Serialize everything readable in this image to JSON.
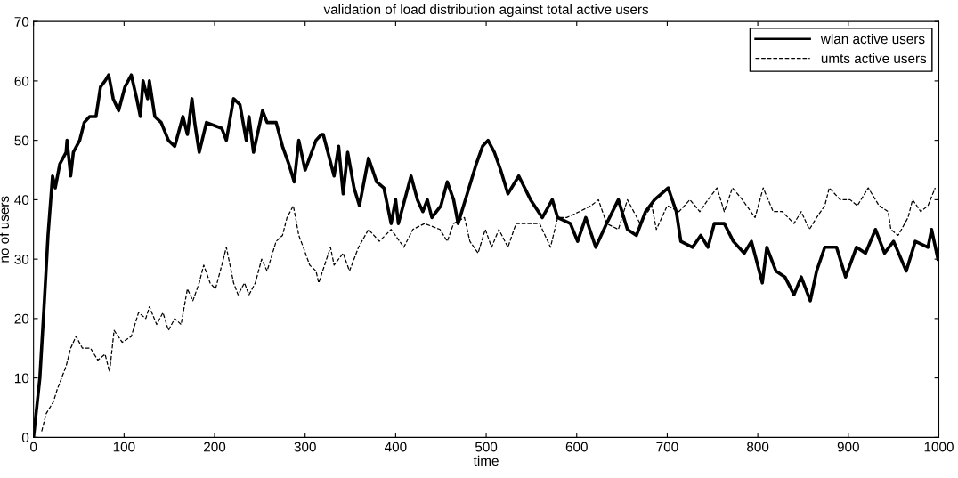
{
  "chart_data": {
    "type": "line",
    "title": "validation of load distribution against total active users",
    "xlabel": "time",
    "ylabel": "no of users",
    "xlim": [
      0,
      1000
    ],
    "xticks": [
      0,
      100,
      200,
      300,
      400,
      500,
      600,
      700,
      800,
      900,
      1000
    ],
    "ylim": [
      0,
      70
    ],
    "yticks": [
      0,
      10,
      20,
      30,
      40,
      50,
      60,
      70
    ],
    "grid": false,
    "legend": "top right",
    "series": [
      {
        "name": "wlan active users",
        "color": "#000000",
        "line_style": "solid",
        "marker": "none",
        "x": [
          0,
          7,
          12,
          16,
          21,
          24,
          29,
          36,
          37,
          41,
          44,
          51,
          56,
          62,
          69,
          74,
          79,
          83,
          88,
          94,
          101,
          108,
          114,
          118,
          121,
          126,
          128,
          134,
          141,
          149,
          156,
          165,
          170,
          175,
          178,
          183,
          191,
          208,
          213,
          221,
          228,
          235,
          238,
          243,
          253,
          258,
          268,
          275,
          282,
          288,
          293,
          300,
          312,
          318,
          320,
          332,
          337,
          342,
          347,
          354,
          360,
          370,
          379,
          387,
          395,
          400,
          403,
          417,
          424,
          430,
          435,
          440,
          450,
          457,
          464,
          469,
          479,
          489,
          496,
          502,
          509,
          516,
          524,
          536,
          549,
          562,
          573,
          579,
          593,
          601,
          610,
          621,
          633,
          646,
          656,
          666,
          676,
          686,
          701,
          710,
          715,
          728,
          737,
          745,
          752,
          763,
          773,
          785,
          793,
          805,
          810,
          820,
          830,
          840,
          848,
          858,
          865,
          874,
          887,
          897,
          909,
          919,
          930,
          940,
          950,
          964,
          974,
          988,
          992,
          999
        ],
        "values": [
          0,
          10,
          23,
          34,
          44,
          42,
          46,
          48,
          50,
          44,
          48,
          50,
          53,
          54,
          54,
          59,
          60,
          61,
          57,
          55,
          59,
          61,
          57,
          54,
          60,
          57,
          60,
          54,
          53,
          50,
          49,
          54,
          51,
          57,
          53,
          48,
          53,
          52,
          50,
          57,
          56,
          50,
          54,
          48,
          55,
          53,
          53,
          49,
          46,
          43,
          50,
          45,
          50,
          51,
          51,
          44,
          49,
          41,
          48,
          42,
          39,
          47,
          43,
          42,
          36,
          40,
          36,
          44,
          40,
          38,
          40,
          37,
          39,
          43,
          40,
          36,
          41,
          46,
          49,
          50,
          48,
          45,
          41,
          44,
          40,
          37,
          40,
          37,
          36,
          33,
          37,
          32,
          36,
          40,
          35,
          34,
          38,
          40,
          42,
          38,
          33,
          32,
          34,
          32,
          36,
          36,
          33,
          31,
          33,
          26,
          32,
          28,
          27,
          24,
          27,
          23,
          28,
          32,
          32,
          27,
          32,
          31,
          35,
          31,
          33,
          28,
          33,
          32,
          35,
          30
        ]
      },
      {
        "name": "umts active users",
        "color": "#000000",
        "line_style": "dashed",
        "marker": "none",
        "x": [
          9,
          14,
          22,
          26,
          31,
          36,
          41,
          47,
          54,
          63,
          71,
          79,
          84,
          89,
          98,
          108,
          116,
          124,
          128,
          136,
          143,
          149,
          156,
          163,
          170,
          176,
          183,
          188,
          195,
          201,
          208,
          213,
          221,
          226,
          233,
          238,
          245,
          252,
          258,
          268,
          275,
          280,
          287,
          293,
          298,
          305,
          312,
          315,
          328,
          332,
          342,
          349,
          359,
          370,
          382,
          395,
          409,
          419,
          432,
          449,
          457,
          464,
          476,
          482,
          491,
          499,
          506,
          514,
          524,
          533,
          546,
          559,
          571,
          579,
          589,
          603,
          616,
          624,
          633,
          646,
          656,
          670,
          683,
          688,
          700,
          713,
          725,
          736,
          745,
          755,
          763,
          772,
          783,
          797,
          806,
          817,
          827,
          840,
          848,
          857,
          865,
          874,
          879,
          891,
          902,
          910,
          922,
          934,
          944,
          947,
          955,
          966,
          971,
          980,
          988,
          996
        ],
        "values": [
          1,
          4,
          6,
          8,
          10,
          12,
          15,
          17,
          15,
          15,
          13,
          14,
          11,
          18,
          16,
          17,
          21,
          20,
          22,
          19,
          21,
          18,
          20,
          19,
          25,
          23,
          26,
          29,
          26,
          25,
          29,
          32,
          26,
          24,
          26,
          24,
          26,
          30,
          28,
          33,
          34,
          37,
          39,
          34,
          32,
          29,
          28,
          26,
          32,
          29,
          31,
          28,
          32,
          35,
          33,
          35,
          32,
          35,
          36,
          35,
          33,
          36,
          37,
          33,
          31,
          35,
          32,
          35,
          32,
          36,
          36,
          36,
          32,
          37,
          37,
          38,
          39,
          40,
          36,
          35,
          40,
          36,
          39,
          35,
          39,
          38,
          40,
          38,
          40,
          42,
          38,
          42,
          40,
          37,
          42,
          38,
          38,
          36,
          38,
          35,
          37,
          39,
          42,
          40,
          40,
          39,
          42,
          39,
          38,
          35,
          34,
          37,
          40,
          38,
          39,
          42
        ]
      }
    ]
  }
}
